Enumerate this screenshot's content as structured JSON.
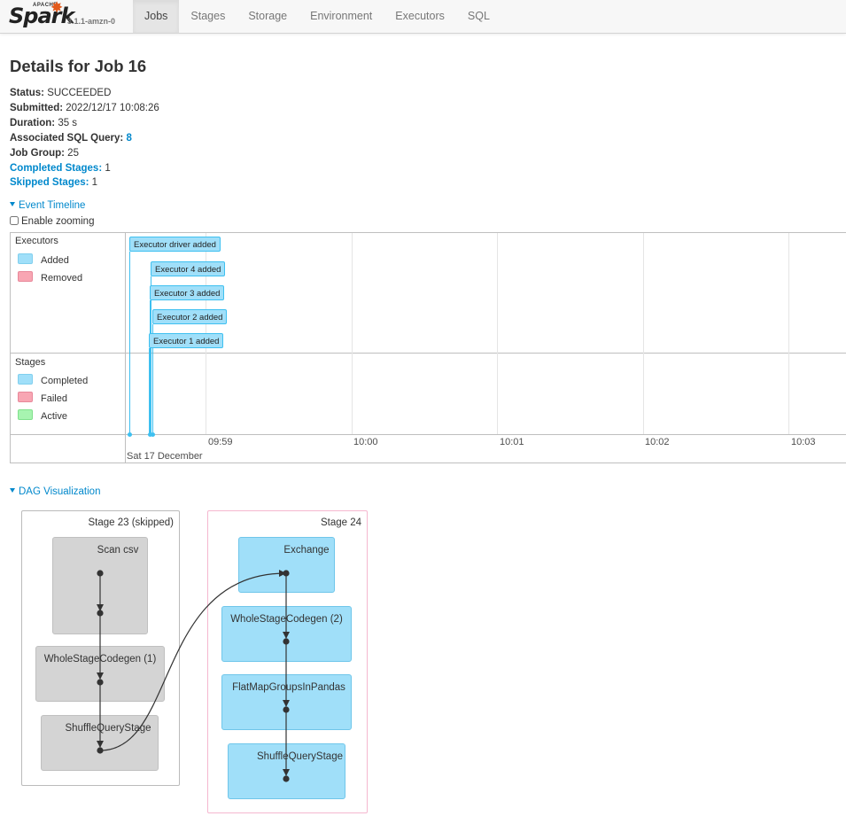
{
  "brand": {
    "apache": "APACHE",
    "name": "Spark",
    "version": "3.1.1-amzn-0"
  },
  "nav": {
    "tabs": [
      "Jobs",
      "Stages",
      "Storage",
      "Environment",
      "Executors",
      "SQL"
    ],
    "active": "Jobs"
  },
  "page": {
    "title": "Details for Job 16"
  },
  "summary": {
    "status_label": "Status:",
    "status": "SUCCEEDED",
    "submitted_label": "Submitted:",
    "submitted": "2022/12/17 10:08:26",
    "duration_label": "Duration:",
    "duration": "35 s",
    "sql_label": "Associated SQL Query:",
    "sql": "8",
    "group_label": "Job Group:",
    "group": "25",
    "completed_label": "Completed Stages:",
    "completed": "1",
    "skipped_label": "Skipped Stages:",
    "skipped": "1"
  },
  "timeline": {
    "heading": "Event Timeline",
    "zoom_label": "Enable zooming",
    "executors_group": "Executors",
    "executors_legend": [
      "Added",
      "Removed"
    ],
    "stages_group": "Stages",
    "stages_legend": [
      "Completed",
      "Failed",
      "Active"
    ],
    "events": [
      "Executor driver added",
      "Executor 4 added",
      "Executor 3 added",
      "Executor 2 added",
      "Executor 1 added"
    ],
    "axis_ticks": [
      "09:59",
      "10:00",
      "10:01",
      "10:02",
      "10:03"
    ],
    "axis_date": "Sat 17 December"
  },
  "dag": {
    "heading": "DAG Visualization",
    "stage23": {
      "label": "Stage 23 (skipped)",
      "nodes": [
        "Scan csv",
        "WholeStageCodegen (1)",
        "ShuffleQueryStage"
      ]
    },
    "stage24": {
      "label": "Stage 24",
      "nodes": [
        "Exchange",
        "WholeStageCodegen (2)",
        "FlatMapGroupsInPandas",
        "ShuffleQueryStage"
      ]
    }
  },
  "colors": {
    "accent": "#0088cc",
    "added": "#a0dff9",
    "removed": "#f8a6b3",
    "active": "#a7f4b0",
    "skipped_node": "#d4d4d4",
    "stage24_border": "#f5b7cf"
  }
}
